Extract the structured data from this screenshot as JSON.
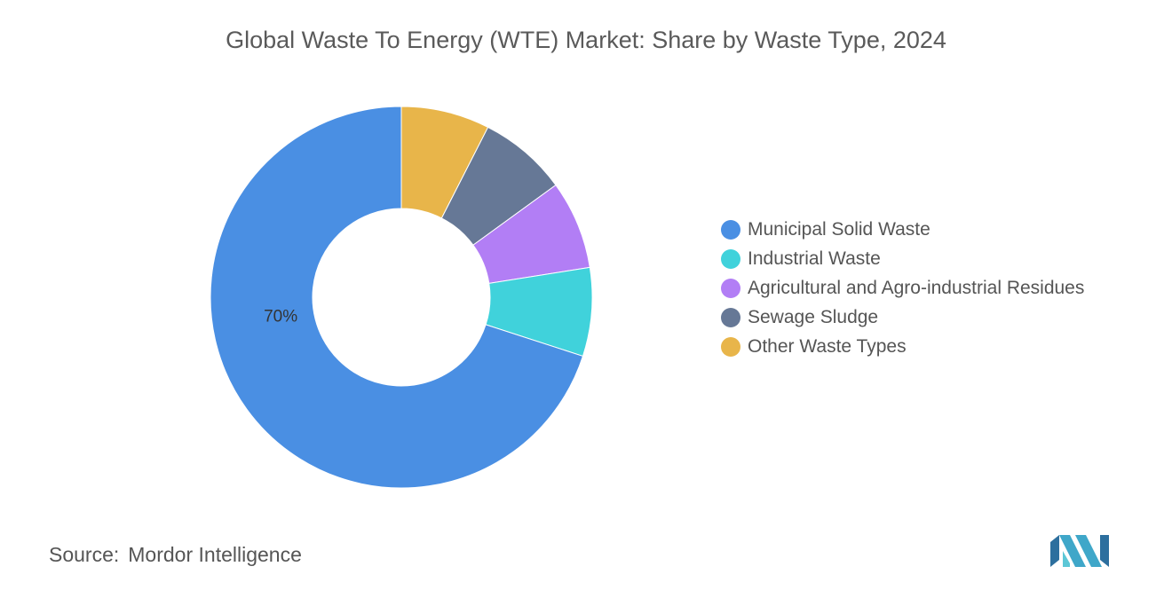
{
  "header": {
    "title": "Global Waste To Energy (WTE) Market: Share by Waste Type, 2024"
  },
  "chart_data": {
    "type": "pie",
    "variant": "donut",
    "title": "Global Waste To Energy (WTE) Market: Share by Waste Type, 2024",
    "slices": [
      {
        "name": "Other Waste Types",
        "value": 7.5,
        "color": "#e8b54a",
        "label": ""
      },
      {
        "name": "Sewage Sludge",
        "value": 7.5,
        "color": "#667896",
        "label": ""
      },
      {
        "name": "Agricultural and Agro-industrial Residues",
        "value": 7.5,
        "color": "#b27ef5",
        "label": ""
      },
      {
        "name": "Industrial Waste",
        "value": 7.5,
        "color": "#40d2db",
        "label": ""
      },
      {
        "name": "Municipal Solid Waste",
        "value": 70,
        "color": "#4a8fe3",
        "label": "70%"
      }
    ],
    "legend": {
      "position": "right",
      "items": [
        {
          "label": "Municipal Solid Waste",
          "color": "#4a8fe3"
        },
        {
          "label": "Industrial Waste",
          "color": "#40d2db"
        },
        {
          "label": "Agricultural and Agro-industrial Residues",
          "color": "#b27ef5"
        },
        {
          "label": "Sewage Sludge",
          "color": "#667896"
        },
        {
          "label": "Other Waste Types",
          "color": "#e8b54a"
        }
      ]
    }
  },
  "footer": {
    "source_label": "Source:",
    "source_value": "Mordor Intelligence",
    "logo_icon": "mordor-intelligence-logo-icon"
  }
}
